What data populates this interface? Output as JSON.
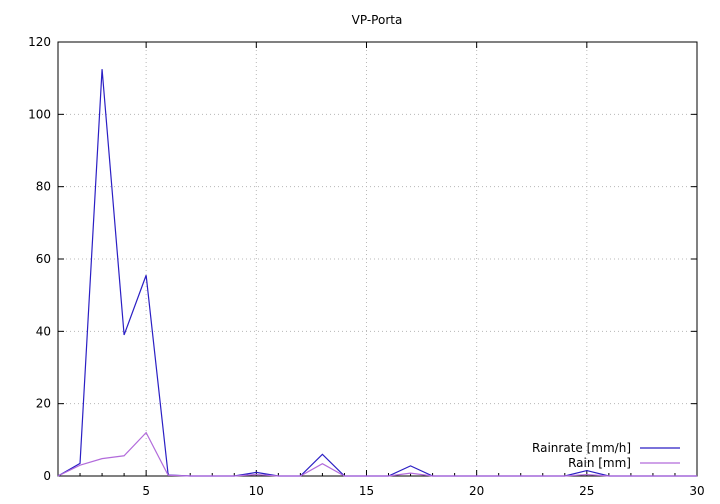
{
  "chart_data": {
    "type": "line",
    "title": "VP-Porta",
    "xlabel": "",
    "ylabel": "",
    "xlim": [
      1,
      30
    ],
    "ylim": [
      0,
      120
    ],
    "xticks": [
      5,
      10,
      15,
      20,
      25,
      30
    ],
    "yticks": [
      0,
      20,
      40,
      60,
      80,
      100,
      120
    ],
    "grid": true,
    "legend_position": "bottom-right",
    "x": [
      1,
      2,
      3,
      4,
      5,
      6,
      7,
      8,
      9,
      10,
      11,
      12,
      13,
      14,
      15,
      16,
      17,
      18,
      19,
      20,
      21,
      22,
      23,
      24,
      25,
      26,
      27,
      28,
      29,
      30
    ],
    "series": [
      {
        "name": "Rainrate [mm/h]",
        "color": "#2b1fc4",
        "values": [
          0,
          3.5,
          112.5,
          39,
          55.5,
          0.3,
          0,
          0,
          0,
          1,
          0,
          0,
          6,
          0,
          0,
          0,
          2.8,
          0,
          0,
          0,
          0,
          0,
          0,
          0,
          1.5,
          0,
          0,
          0,
          0,
          0
        ]
      },
      {
        "name": "Rain [mm]",
        "color": "#b26bdb",
        "values": [
          0,
          3,
          4.8,
          5.6,
          12,
          0.2,
          0,
          0,
          0,
          0.4,
          0,
          0,
          3.4,
          0,
          0,
          0,
          0.8,
          0,
          0,
          0,
          0,
          0,
          0,
          0,
          0.4,
          0,
          0,
          0,
          0,
          0
        ]
      }
    ]
  }
}
